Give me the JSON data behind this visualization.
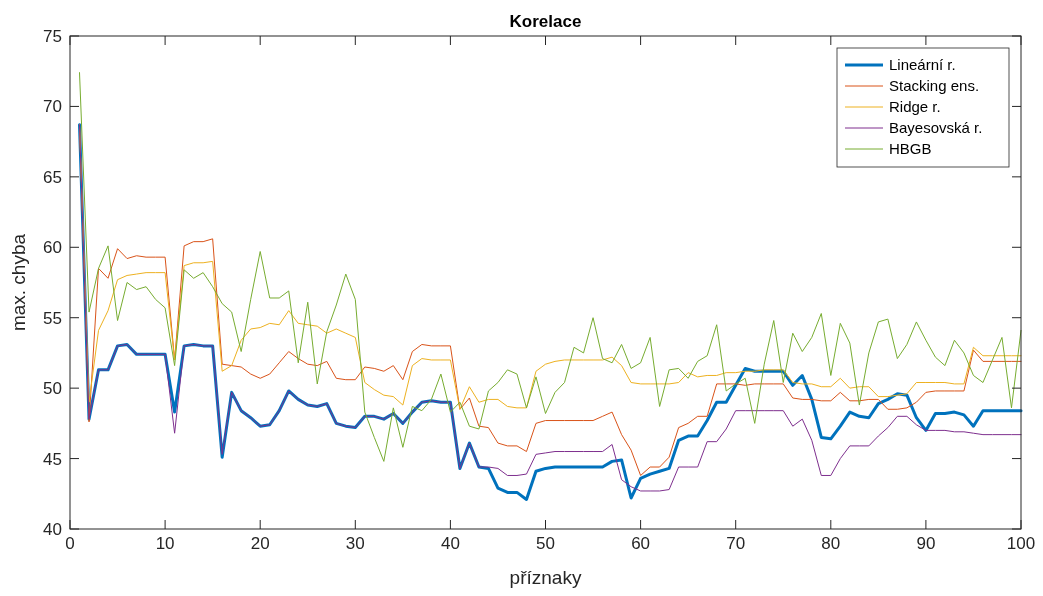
{
  "chart_data": {
    "type": "line",
    "title": "Korelace",
    "xlabel": "příznaky",
    "ylabel": "max. chyba",
    "x": [
      1,
      2,
      3,
      4,
      5,
      6,
      7,
      8,
      9,
      10,
      11,
      12,
      13,
      14,
      15,
      16,
      17,
      18,
      19,
      20,
      21,
      22,
      23,
      24,
      25,
      26,
      27,
      28,
      29,
      30,
      31,
      32,
      33,
      34,
      35,
      36,
      37,
      38,
      39,
      40,
      41,
      42,
      43,
      44,
      45,
      46,
      47,
      48,
      49,
      50,
      51,
      52,
      53,
      54,
      55,
      56,
      57,
      58,
      59,
      60,
      61,
      62,
      63,
      64,
      65,
      66,
      67,
      68,
      69,
      70,
      71,
      72,
      73,
      74,
      75,
      76,
      77,
      78,
      79,
      80,
      81,
      82,
      83,
      84,
      85,
      86,
      87,
      88,
      89,
      90,
      91,
      92,
      93,
      94,
      95,
      96,
      97,
      98,
      99,
      100
    ],
    "xlim": [
      0,
      100
    ],
    "xticks": [
      0,
      10,
      20,
      30,
      40,
      50,
      60,
      70,
      80,
      90,
      100
    ],
    "ylim": [
      40,
      75
    ],
    "yticks": [
      40,
      45,
      50,
      55,
      60,
      65,
      70,
      75
    ],
    "legend": "top right",
    "grid": false,
    "line_style": "solid",
    "marker": "none",
    "series": [
      {
        "name": "Lineární r.",
        "color": "#0072bd",
        "values": [
          68.7,
          47.8,
          51.3,
          51.3,
          53.0,
          53.1,
          52.4,
          52.4,
          52.4,
          52.4,
          48.3,
          53.0,
          53.1,
          53.0,
          53.0,
          45.1,
          49.7,
          48.4,
          47.9,
          47.3,
          47.4,
          48.4,
          49.8,
          49.2,
          48.8,
          48.7,
          48.9,
          47.5,
          47.3,
          47.2,
          48.0,
          48.0,
          47.8,
          48.2,
          47.5,
          48.3,
          49.0,
          49.1,
          49.0,
          49.0,
          44.3,
          46.1,
          44.4,
          44.3,
          42.9,
          42.6,
          42.6,
          42.1,
          44.1,
          44.3,
          44.4,
          44.4,
          44.4,
          44.4,
          44.4,
          44.4,
          44.8,
          44.9,
          42.2,
          43.6,
          43.9,
          44.1,
          44.3,
          46.3,
          46.6,
          46.6,
          47.7,
          49.0,
          49.0,
          50.2,
          51.4,
          51.2,
          51.2,
          51.2,
          51.2,
          50.2,
          50.9,
          49.2,
          46.5,
          46.4,
          47.3,
          48.3,
          48.0,
          47.9,
          48.9,
          49.2,
          49.6,
          49.5,
          47.9,
          47.0,
          48.2,
          48.2,
          48.3,
          48.1,
          47.3,
          48.4,
          48.4,
          48.4,
          48.4,
          48.4
        ]
      },
      {
        "name": "Stacking ens.",
        "color": "#d95319",
        "values": [
          68.7,
          47.6,
          58.5,
          57.8,
          59.9,
          59.2,
          59.4,
          59.3,
          59.3,
          59.3,
          52.0,
          60.1,
          60.4,
          60.4,
          60.6,
          51.7,
          51.6,
          51.5,
          51.0,
          50.7,
          51.0,
          51.8,
          52.6,
          52.1,
          51.7,
          51.6,
          51.9,
          50.7,
          50.6,
          50.6,
          51.5,
          51.4,
          51.2,
          51.6,
          50.6,
          52.6,
          53.1,
          53.0,
          53.0,
          53.0,
          48.5,
          49.3,
          47.3,
          47.2,
          46.1,
          45.9,
          45.9,
          45.5,
          47.5,
          47.7,
          47.7,
          47.7,
          47.7,
          47.7,
          47.7,
          48.0,
          48.3,
          46.7,
          45.6,
          43.8,
          44.4,
          44.4,
          45.1,
          47.2,
          47.5,
          48.0,
          48.0,
          50.3,
          50.3,
          50.3,
          50.2,
          50.3,
          50.3,
          50.3,
          50.3,
          49.3,
          49.2,
          49.2,
          49.1,
          49.1,
          49.7,
          49.1,
          49.1,
          49.2,
          49.2,
          48.5,
          48.5,
          48.6,
          49.0,
          49.7,
          49.8,
          49.8,
          49.8,
          49.8,
          52.7,
          51.9,
          51.9,
          51.9,
          51.9,
          51.9
        ]
      },
      {
        "name": "Ridge r.",
        "color": "#edb120",
        "values": [
          68.7,
          49.0,
          54.1,
          55.5,
          57.7,
          58.0,
          58.1,
          58.2,
          58.2,
          58.2,
          52.0,
          58.7,
          58.9,
          58.9,
          59.0,
          51.2,
          51.6,
          53.4,
          54.2,
          54.3,
          54.6,
          54.5,
          55.5,
          54.6,
          54.5,
          54.4,
          53.9,
          54.2,
          53.9,
          53.6,
          50.4,
          49.9,
          49.5,
          49.4,
          48.8,
          51.6,
          52.1,
          52.0,
          52.0,
          52.0,
          48.5,
          50.1,
          49.0,
          49.2,
          49.2,
          48.7,
          48.6,
          48.6,
          51.2,
          51.7,
          51.9,
          52.0,
          52.0,
          52.0,
          52.0,
          52.0,
          52.2,
          51.6,
          50.4,
          50.3,
          50.3,
          50.3,
          50.3,
          50.4,
          51.1,
          50.8,
          50.9,
          50.9,
          51.1,
          51.1,
          51.2,
          51.2,
          51.3,
          51.3,
          51.3,
          50.4,
          50.3,
          50.3,
          50.1,
          50.1,
          50.7,
          50.0,
          50.1,
          50.1,
          49.4,
          49.4,
          49.5,
          49.6,
          50.4,
          50.4,
          50.4,
          50.4,
          50.3,
          50.3,
          52.9,
          52.3,
          52.3,
          52.3,
          52.3,
          52.3
        ]
      },
      {
        "name": "Bayesovská r.",
        "color": "#7e2f8e",
        "values": [
          68.7,
          47.8,
          51.3,
          51.3,
          53.0,
          53.1,
          52.4,
          52.4,
          52.4,
          52.4,
          46.8,
          53.0,
          53.1,
          53.0,
          53.0,
          45.3,
          49.7,
          48.4,
          47.9,
          47.3,
          47.4,
          48.4,
          49.8,
          49.2,
          48.8,
          48.7,
          48.9,
          47.5,
          47.3,
          47.2,
          48.0,
          48.0,
          47.8,
          48.2,
          47.5,
          48.3,
          49.0,
          49.1,
          49.0,
          49.0,
          44.3,
          46.1,
          44.4,
          44.4,
          44.3,
          43.8,
          43.8,
          43.9,
          45.3,
          45.4,
          45.5,
          45.5,
          45.5,
          45.5,
          45.5,
          45.5,
          46.0,
          43.5,
          43.0,
          42.7,
          42.7,
          42.7,
          42.8,
          44.4,
          44.4,
          44.4,
          46.2,
          46.2,
          47.1,
          48.4,
          48.4,
          48.4,
          48.4,
          48.4,
          48.4,
          47.3,
          47.8,
          46.3,
          43.8,
          43.8,
          45.0,
          45.9,
          45.9,
          45.9,
          46.6,
          47.2,
          48.0,
          48.0,
          47.4,
          47.0,
          47.0,
          47.0,
          46.9,
          46.9,
          46.8,
          46.7,
          46.7,
          46.7,
          46.7,
          46.7
        ]
      },
      {
        "name": "HBGB",
        "color": "#77ac30",
        "values": [
          72.4,
          55.4,
          58.5,
          60.1,
          54.8,
          57.5,
          57.0,
          57.2,
          56.3,
          55.7,
          51.6,
          58.4,
          57.8,
          58.2,
          57.2,
          56.0,
          55.4,
          52.6,
          56.3,
          59.7,
          56.4,
          56.4,
          56.9,
          51.8,
          56.1,
          50.3,
          54.0,
          55.9,
          58.1,
          56.3,
          48.3,
          46.5,
          44.8,
          48.6,
          45.8,
          48.7,
          48.4,
          49.2,
          51.0,
          48.3,
          49.0,
          47.3,
          47.1,
          49.8,
          50.4,
          51.3,
          51.0,
          48.6,
          50.8,
          48.2,
          49.7,
          50.4,
          52.9,
          52.5,
          55.0,
          52.1,
          51.8,
          53.1,
          51.4,
          51.8,
          53.6,
          48.7,
          51.3,
          51.4,
          50.7,
          51.9,
          52.3,
          54.5,
          49.8,
          50.3,
          50.7,
          47.5,
          51.7,
          54.8,
          50.4,
          53.9,
          52.6,
          53.6,
          55.3,
          50.9,
          54.6,
          53.2,
          48.8,
          52.5,
          54.7,
          54.9,
          52.1,
          53.1,
          54.7,
          53.4,
          52.2,
          51.6,
          53.4,
          52.5,
          50.9,
          50.4,
          52.0,
          53.6,
          48.6,
          54.1
        ]
      }
    ]
  }
}
